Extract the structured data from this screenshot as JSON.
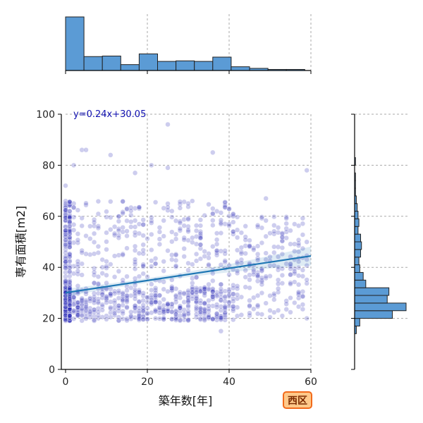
{
  "chart_data": {
    "type": "scatter",
    "xlabel": "築年数[年]",
    "ylabel": "専有面積[m2]",
    "xlim": [
      0,
      60
    ],
    "ylim": [
      0,
      100
    ],
    "x_ticks": [
      "0",
      "20",
      "40",
      "60"
    ],
    "y_ticks": [
      "0",
      "20",
      "40",
      "60",
      "80",
      "100"
    ],
    "grid": true,
    "regression": {
      "slope": 0.24,
      "intercept": 30.05,
      "label": "y=0.24x+30.05"
    },
    "badge": "西区",
    "colors": {
      "points": "#1a1ab0",
      "regression_line": "#1f77b4",
      "histogram": "#5b9bd5"
    },
    "x_histogram": {
      "bin_edges": [
        0,
        4.5,
        9,
        13.5,
        18,
        22.5,
        27,
        31.5,
        36,
        40.5,
        45,
        49.5,
        54,
        58.5
      ],
      "counts": [
        100,
        26,
        27,
        11,
        31,
        17,
        18,
        17,
        25,
        7,
        4,
        2,
        2
      ]
    },
    "y_histogram": {
      "bin_edges": [
        14,
        17,
        20,
        23,
        26,
        29,
        32,
        35,
        38,
        41,
        44,
        47,
        50,
        53,
        56,
        59,
        62,
        65,
        68,
        71,
        74,
        77,
        80,
        83,
        86
      ],
      "counts": [
        2,
        6,
        44,
        60,
        38,
        40,
        13,
        10,
        6,
        5,
        7,
        8,
        7,
        4,
        5,
        4,
        3,
        2,
        1,
        1,
        1,
        0,
        1,
        0
      ]
    },
    "points_sample": [
      [
        0,
        21
      ],
      [
        0,
        24
      ],
      [
        0,
        27
      ],
      [
        0,
        30
      ],
      [
        0,
        34
      ],
      [
        0,
        38
      ],
      [
        0,
        42
      ],
      [
        0,
        47
      ],
      [
        0,
        52
      ],
      [
        0,
        56
      ],
      [
        0,
        62
      ],
      [
        0,
        66
      ],
      [
        0,
        72
      ],
      [
        1,
        22
      ],
      [
        1,
        25
      ],
      [
        1,
        29
      ],
      [
        1,
        33
      ],
      [
        2,
        23
      ],
      [
        2,
        27
      ],
      [
        2,
        80
      ],
      [
        3,
        21
      ],
      [
        3,
        26
      ],
      [
        3,
        31
      ],
      [
        4,
        86
      ],
      [
        5,
        86
      ],
      [
        5,
        22
      ],
      [
        6,
        28
      ],
      [
        6,
        45
      ],
      [
        8,
        20
      ],
      [
        9,
        32
      ],
      [
        10,
        21
      ],
      [
        10,
        47
      ],
      [
        11,
        84
      ],
      [
        12,
        26
      ],
      [
        13,
        60
      ],
      [
        15,
        29
      ],
      [
        17,
        77
      ],
      [
        18,
        22
      ],
      [
        20,
        24
      ],
      [
        21,
        80
      ],
      [
        22,
        35
      ],
      [
        24,
        25
      ],
      [
        25,
        96
      ],
      [
        25,
        79
      ],
      [
        26,
        43
      ],
      [
        28,
        58
      ],
      [
        30,
        22
      ],
      [
        31,
        66
      ],
      [
        33,
        54
      ],
      [
        35,
        20
      ],
      [
        36,
        85
      ],
      [
        37,
        62
      ],
      [
        38,
        21
      ],
      [
        38,
        15
      ],
      [
        39,
        57
      ],
      [
        40,
        63
      ],
      [
        41,
        33
      ],
      [
        43,
        46
      ],
      [
        45,
        27
      ],
      [
        47,
        38
      ],
      [
        49,
        67
      ],
      [
        52,
        39
      ],
      [
        55,
        28
      ],
      [
        56,
        43
      ],
      [
        59,
        20
      ],
      [
        59,
        78
      ]
    ]
  }
}
